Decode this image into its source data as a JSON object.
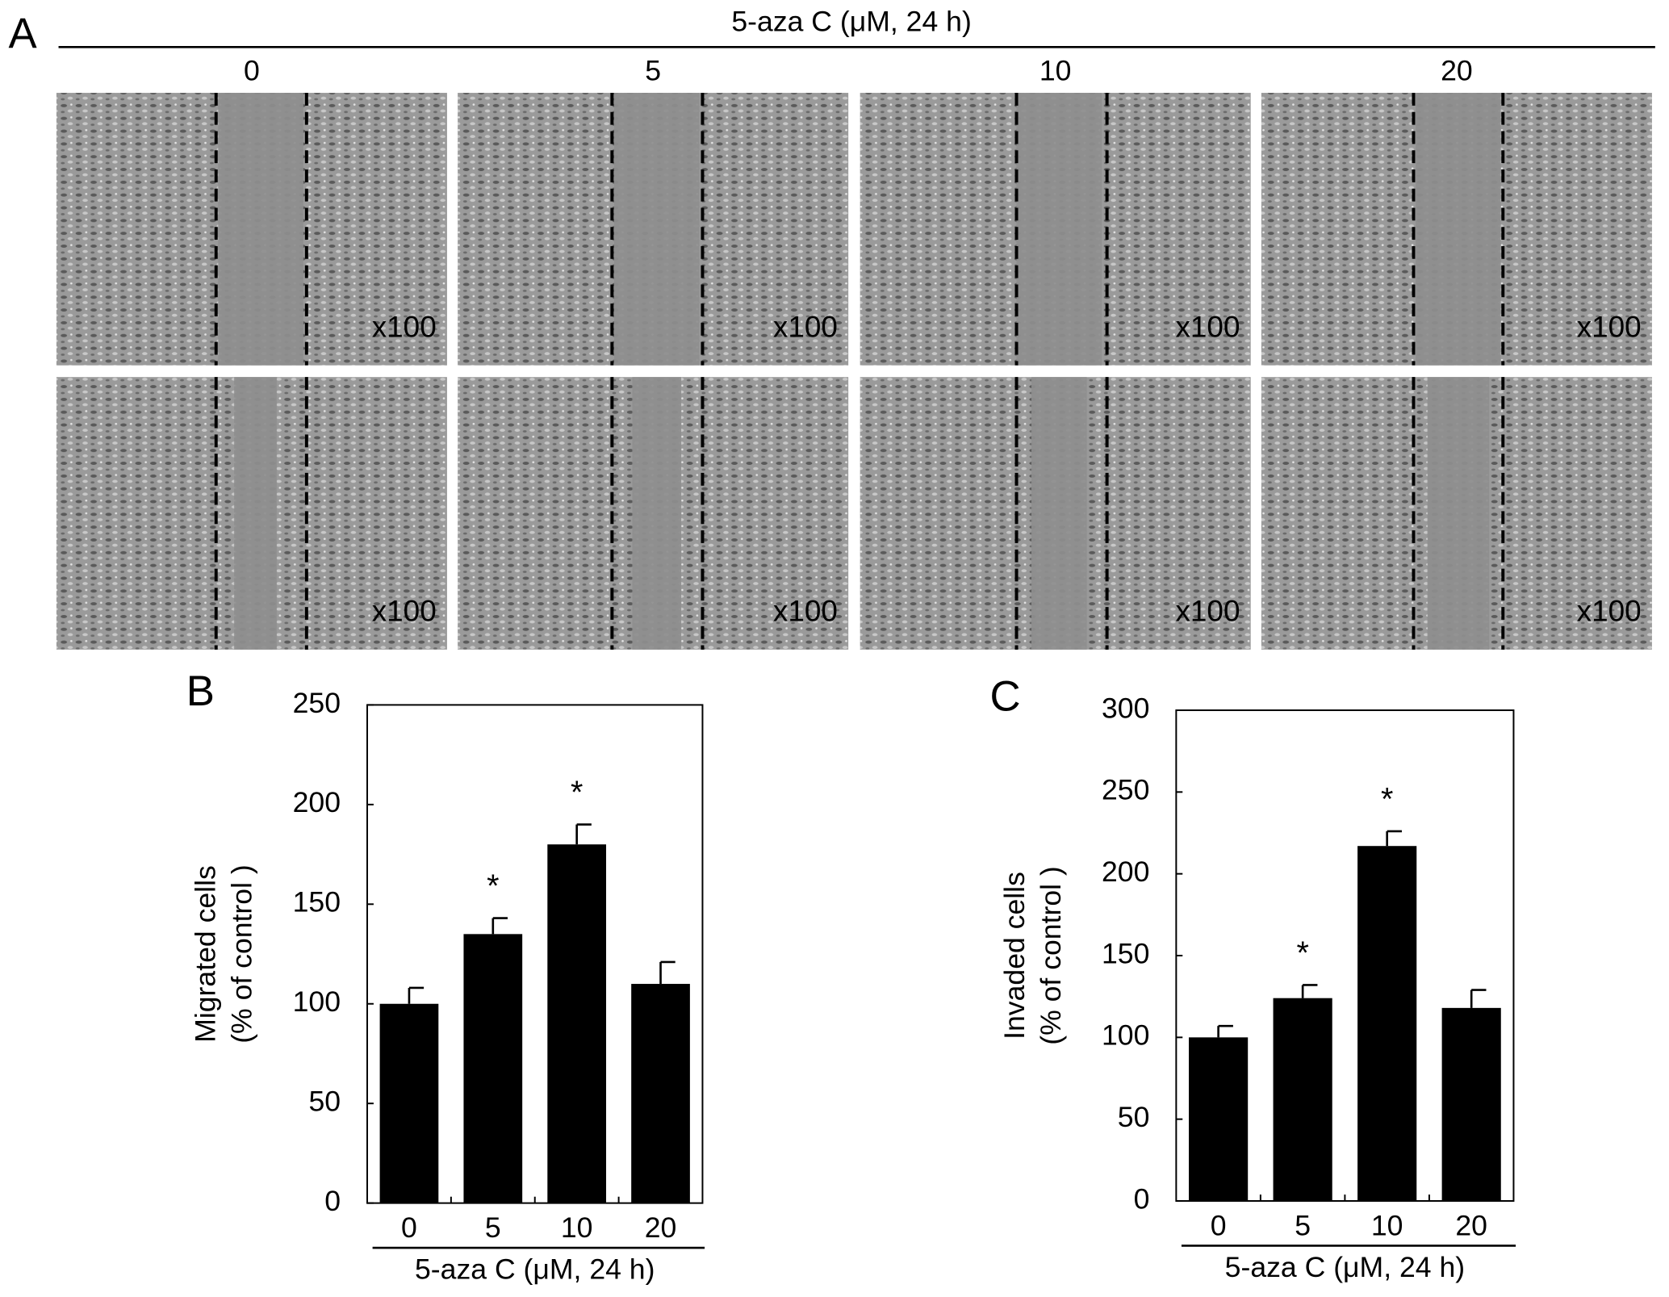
{
  "panel_a": {
    "label": "A",
    "title": "5-aza C  (μM, 24 h)",
    "columns": [
      "0",
      "5",
      "10",
      "20"
    ],
    "magnification": "x100"
  },
  "chart_data": [
    {
      "type": "bar",
      "panel_label": "B",
      "y_label": [
        "Migrated cells",
        "(% of control )"
      ],
      "x_label": "5-aza C (μM, 24 h)",
      "categories": [
        "0",
        "5",
        "10",
        "20"
      ],
      "values": [
        100,
        135,
        180,
        110
      ],
      "errors": [
        8,
        8,
        10,
        11
      ],
      "annotations": [
        null,
        "*",
        "*",
        null
      ],
      "color": "#000000",
      "ylim": [
        0,
        250
      ],
      "yticks": [
        0,
        50,
        100,
        150,
        200,
        250
      ]
    },
    {
      "type": "bar",
      "panel_label": "C",
      "y_label": [
        "Invaded cells",
        "(% of control )"
      ],
      "x_label": "5-aza C (μM, 24 h)",
      "categories": [
        "0",
        "5",
        "10",
        "20"
      ],
      "values": [
        100,
        124,
        217,
        118
      ],
      "errors": [
        7,
        8,
        9,
        11
      ],
      "annotations": [
        null,
        "*",
        "*",
        null
      ],
      "color": "#000000",
      "ylim": [
        0,
        300
      ],
      "yticks": [
        0,
        50,
        100,
        150,
        200,
        250,
        300
      ]
    }
  ]
}
